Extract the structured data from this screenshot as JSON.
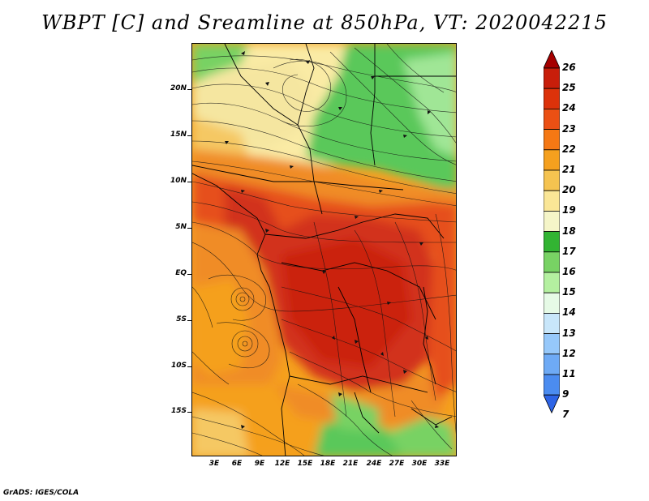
{
  "title": "WBPT [C] and Sreamline at 850hPa, VT: 2020042215",
  "credit": "GrADS: IGES/COLA",
  "lat_labels": [
    "20N",
    "15N",
    "10N",
    "5N",
    "EQ",
    "5S",
    "10S",
    "15S"
  ],
  "lon_labels": [
    "3E",
    "6E",
    "9E",
    "12E",
    "15E",
    "18E",
    "21E",
    "24E",
    "27E",
    "30E",
    "33E"
  ],
  "colorbar": {
    "levels": [
      "26",
      "25",
      "24",
      "23",
      "22",
      "21",
      "20",
      "19",
      "18",
      "17",
      "16",
      "15",
      "14",
      "13",
      "12",
      "11",
      "9",
      "7"
    ],
    "colors": [
      "#a50000",
      "#c81e0a",
      "#dc320a",
      "#eb5014",
      "#f57814",
      "#f5a01e",
      "#f5c350",
      "#fae696",
      "#f5f5c8",
      "#32b432",
      "#78d264",
      "#b4f0a0",
      "#e6fae6",
      "#c8e6fa",
      "#96c8fa",
      "#6eaaf5",
      "#4b8cf0",
      "#2d64e6"
    ]
  },
  "field_colors": {
    "green": "#5ac85a",
    "light_green": "#a0e696",
    "pale_yellow": "#faeba5",
    "yellow": "#f5c864",
    "orange": "#f08c28",
    "red_orange": "#e6501e",
    "red": "#d2321e"
  }
}
